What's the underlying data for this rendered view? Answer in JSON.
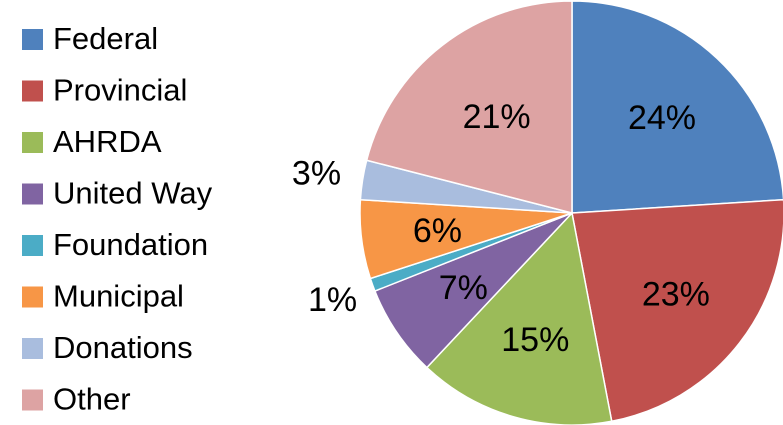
{
  "chart_data": {
    "type": "pie",
    "title": "",
    "start": "12 o'clock",
    "direction": "clockwise",
    "legend_position": "left",
    "categories": [
      "Federal",
      "Provincial",
      "AHRDA",
      "United Way",
      "Foundation",
      "Municipal",
      "Donations",
      "Other"
    ],
    "values": [
      24,
      23,
      15,
      7,
      1,
      6,
      3,
      21
    ],
    "labels": [
      "24%",
      "23%",
      "15%",
      "7%",
      "1%",
      "6%",
      "3%",
      "21%"
    ],
    "colors": [
      "#4F81BD",
      "#C0504D",
      "#9BBB59",
      "#8064A2",
      "#4BACC6",
      "#F79646",
      "#A9BDDE",
      "#DDA3A3"
    ],
    "units": "%"
  }
}
